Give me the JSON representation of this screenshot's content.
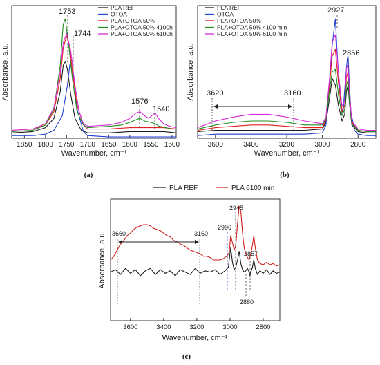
{
  "panels": [
    {
      "id": "a",
      "caption": "(a)",
      "xlabel": "Wavenumber, cm⁻¹",
      "ylabel": "Absorbance, a.u.",
      "legend": [
        {
          "name": "PLA  REF",
          "color": "#1a1a1a"
        },
        {
          "name": "OTOA",
          "color": "#1f3fd0"
        },
        {
          "name": "PLA+OTOA 50%",
          "color": "#e02020"
        },
        {
          "name": "PLA+OTOA 50% 4100h",
          "color": "#1f8f1f"
        },
        {
          "name": "PLA+OTOA 50% 6100h",
          "color": "#d62ad6"
        }
      ],
      "peak_labels": [
        "1753",
        "1744",
        "1576",
        "1540"
      ]
    },
    {
      "id": "b",
      "caption": "(b)",
      "xlabel": "Wavenumber, cm⁻¹",
      "ylabel": "Absorbance, a.u.",
      "legend": [
        {
          "name": "PLA  REF",
          "color": "#1a1a1a"
        },
        {
          "name": "OTOA",
          "color": "#1f3fd0"
        },
        {
          "name": "PLA+OTOA 50%",
          "color": "#e02020"
        },
        {
          "name": "PLA+OTOA 50% 4100 min",
          "color": "#1f8f1f"
        },
        {
          "name": "PLA+OTOA 50% 6100 min",
          "color": "#d62ad6"
        }
      ],
      "peak_labels": [
        "2927",
        "2856",
        "3620",
        "3160"
      ]
    },
    {
      "id": "c",
      "caption": "(c)",
      "xlabel": "Wavenumber, cm⁻¹",
      "ylabel": "Absorbance, a.u.",
      "legend": [
        {
          "name": "PLA REF",
          "color": "#1a1a1a"
        },
        {
          "name": "PLA 6100 min",
          "color": "#d02020"
        }
      ],
      "peak_labels": [
        "2945",
        "2996",
        "2857",
        "2880",
        "3660",
        "3160"
      ]
    }
  ],
  "chart_data": [
    {
      "type": "line",
      "panel": "a",
      "xlim": [
        1880,
        1490
      ],
      "ylim": [
        0,
        1.0
      ],
      "x_ticks": [
        1850,
        1800,
        1750,
        1700,
        1650,
        1600,
        1550,
        1500
      ],
      "xlabel": "Wavenumber, cm⁻¹",
      "ylabel": "Absorbance, a.u.",
      "y_tick_labels": false,
      "series": [
        {
          "name": "PLA  REF",
          "color": "#1a1a1a",
          "x": [
            1880,
            1830,
            1800,
            1780,
            1765,
            1758,
            1753,
            1748,
            1740,
            1730,
            1715,
            1700,
            1650,
            1600,
            1580,
            1560,
            1540,
            1520,
            1490
          ],
          "y": [
            0.04,
            0.05,
            0.08,
            0.15,
            0.35,
            0.55,
            0.58,
            0.52,
            0.33,
            0.15,
            0.06,
            0.04,
            0.04,
            0.05,
            0.05,
            0.05,
            0.05,
            0.05,
            0.04
          ]
        },
        {
          "name": "OTOA",
          "color": "#1f3fd0",
          "x": [
            1880,
            1830,
            1800,
            1780,
            1760,
            1748,
            1742,
            1735,
            1725,
            1710,
            1700,
            1650,
            1600,
            1580,
            1560,
            1540,
            1520,
            1490
          ],
          "y": [
            0.02,
            0.02,
            0.03,
            0.06,
            0.17,
            0.4,
            0.56,
            0.5,
            0.22,
            0.05,
            0.02,
            0.01,
            0.01,
            0.01,
            0.01,
            0.01,
            0.01,
            0.01
          ]
        },
        {
          "name": "PLA+OTOA 50%",
          "color": "#e02020",
          "x": [
            1880,
            1830,
            1800,
            1780,
            1765,
            1758,
            1750,
            1743,
            1735,
            1725,
            1710,
            1700,
            1650,
            1600,
            1580,
            1560,
            1540,
            1520,
            1490
          ],
          "y": [
            0.06,
            0.07,
            0.1,
            0.2,
            0.45,
            0.68,
            0.77,
            0.7,
            0.47,
            0.25,
            0.1,
            0.07,
            0.07,
            0.08,
            0.08,
            0.08,
            0.08,
            0.08,
            0.07
          ]
        },
        {
          "name": "PLA+OTOA 50% 4100h",
          "color": "#1f8f1f",
          "x": [
            1880,
            1830,
            1800,
            1780,
            1765,
            1758,
            1753,
            1745,
            1735,
            1725,
            1710,
            1700,
            1650,
            1620,
            1600,
            1585,
            1576,
            1565,
            1550,
            1540,
            1530,
            1515,
            1500,
            1490
          ],
          "y": [
            0.05,
            0.06,
            0.1,
            0.22,
            0.55,
            0.86,
            0.9,
            0.7,
            0.42,
            0.2,
            0.1,
            0.08,
            0.09,
            0.1,
            0.12,
            0.14,
            0.15,
            0.13,
            0.12,
            0.11,
            0.09,
            0.08,
            0.07,
            0.07
          ]
        },
        {
          "name": "PLA+OTOA 50% 6100h",
          "color": "#d62ad6",
          "x": [
            1880,
            1830,
            1800,
            1780,
            1765,
            1758,
            1750,
            1740,
            1730,
            1720,
            1710,
            1700,
            1650,
            1620,
            1600,
            1585,
            1576,
            1565,
            1555,
            1548,
            1540,
            1532,
            1520,
            1505,
            1490
          ],
          "y": [
            0.06,
            0.07,
            0.11,
            0.23,
            0.5,
            0.72,
            0.79,
            0.66,
            0.4,
            0.2,
            0.11,
            0.09,
            0.1,
            0.12,
            0.15,
            0.19,
            0.2,
            0.17,
            0.15,
            0.17,
            0.19,
            0.15,
            0.11,
            0.09,
            0.08
          ]
        }
      ]
    },
    {
      "type": "line",
      "panel": "b",
      "xlim": [
        3700,
        2700
      ],
      "ylim": [
        0,
        1.0
      ],
      "x_ticks": [
        3600,
        3400,
        3200,
        3000,
        2800
      ],
      "xlabel": "Wavenumber, cm⁻¹",
      "ylabel": "Absorbance, a.u.",
      "y_tick_labels": false,
      "annotations": [
        {
          "type": "range-arrow",
          "from": 3620,
          "to": 3160,
          "label_left": "3620",
          "label_right": "3160"
        }
      ],
      "series": [
        {
          "name": "PLA  REF",
          "color": "#1a1a1a",
          "x": [
            3700,
            3600,
            3500,
            3400,
            3300,
            3200,
            3100,
            3000,
            2980,
            2960,
            2945,
            2927,
            2910,
            2890,
            2875,
            2865,
            2856,
            2848,
            2835,
            2800,
            2750,
            2700
          ],
          "y": [
            0.05,
            0.06,
            0.06,
            0.06,
            0.06,
            0.06,
            0.06,
            0.07,
            0.12,
            0.3,
            0.45,
            0.4,
            0.25,
            0.13,
            0.18,
            0.35,
            0.4,
            0.26,
            0.1,
            0.05,
            0.04,
            0.04
          ]
        },
        {
          "name": "OTOA",
          "color": "#1f3fd0",
          "x": [
            3700,
            3600,
            3500,
            3400,
            3300,
            3200,
            3100,
            3000,
            2980,
            2960,
            2945,
            2927,
            2915,
            2900,
            2885,
            2870,
            2860,
            2856,
            2850,
            2840,
            2820,
            2800,
            2750,
            2700
          ],
          "y": [
            0.02,
            0.03,
            0.03,
            0.03,
            0.03,
            0.03,
            0.03,
            0.04,
            0.1,
            0.4,
            0.7,
            0.9,
            0.6,
            0.3,
            0.18,
            0.45,
            0.6,
            0.62,
            0.45,
            0.2,
            0.06,
            0.03,
            0.02,
            0.02
          ]
        },
        {
          "name": "PLA+OTOA 50%",
          "color": "#e02020",
          "x": [
            3700,
            3600,
            3500,
            3400,
            3300,
            3200,
            3100,
            3000,
            2980,
            2960,
            2945,
            2927,
            2910,
            2890,
            2875,
            2865,
            2856,
            2848,
            2835,
            2800,
            2750,
            2700
          ],
          "y": [
            0.06,
            0.08,
            0.09,
            0.1,
            0.1,
            0.09,
            0.08,
            0.08,
            0.14,
            0.4,
            0.62,
            0.67,
            0.42,
            0.2,
            0.25,
            0.46,
            0.5,
            0.32,
            0.12,
            0.06,
            0.05,
            0.05
          ]
        },
        {
          "name": "PLA+OTOA 50% 4100 min",
          "color": "#1f8f1f",
          "x": [
            3700,
            3600,
            3500,
            3400,
            3300,
            3200,
            3100,
            3000,
            2980,
            2960,
            2945,
            2927,
            2910,
            2890,
            2875,
            2865,
            2856,
            2848,
            2835,
            2800,
            2750,
            2700
          ],
          "y": [
            0.07,
            0.1,
            0.12,
            0.13,
            0.13,
            0.12,
            0.1,
            0.1,
            0.15,
            0.36,
            0.5,
            0.52,
            0.33,
            0.17,
            0.22,
            0.4,
            0.44,
            0.28,
            0.11,
            0.06,
            0.05,
            0.05
          ]
        },
        {
          "name": "PLA+OTOA 50% 6100 min",
          "color": "#d62ad6",
          "x": [
            3700,
            3600,
            3500,
            3400,
            3300,
            3200,
            3100,
            3000,
            2980,
            2960,
            2945,
            2927,
            2910,
            2890,
            2875,
            2865,
            2856,
            2848,
            2835,
            2800,
            2750,
            2700
          ],
          "y": [
            0.08,
            0.13,
            0.16,
            0.18,
            0.18,
            0.16,
            0.13,
            0.11,
            0.16,
            0.45,
            0.72,
            0.78,
            0.5,
            0.24,
            0.28,
            0.52,
            0.56,
            0.35,
            0.13,
            0.07,
            0.06,
            0.06
          ]
        }
      ]
    },
    {
      "type": "line",
      "panel": "c",
      "xlim": [
        3720,
        2700
      ],
      "ylim": [
        0,
        1.0
      ],
      "x_ticks": [
        3600,
        3400,
        3200,
        3000,
        2800
      ],
      "xlabel": "Wavenumber, cm⁻¹",
      "ylabel": "Absorbance, a.u.",
      "y_tick_labels": false,
      "annotations": [
        {
          "type": "range-arrow",
          "from": 3660,
          "to": 3160,
          "label_left": "3660",
          "label_right": "3160"
        }
      ],
      "series": [
        {
          "name": "PLA REF",
          "color": "#1a1a1a",
          "x": [
            3720,
            3690,
            3660,
            3630,
            3600,
            3570,
            3540,
            3510,
            3480,
            3450,
            3420,
            3390,
            3360,
            3330,
            3300,
            3270,
            3240,
            3210,
            3180,
            3150,
            3120,
            3090,
            3060,
            3030,
            3010,
            2996,
            2985,
            2975,
            2965,
            2955,
            2945,
            2935,
            2925,
            2915,
            2905,
            2895,
            2885,
            2880,
            2875,
            2865,
            2857,
            2848,
            2835,
            2820,
            2800,
            2780,
            2760,
            2740,
            2720,
            2700
          ],
          "y": [
            0.4,
            0.42,
            0.38,
            0.43,
            0.39,
            0.42,
            0.37,
            0.41,
            0.43,
            0.38,
            0.42,
            0.39,
            0.41,
            0.37,
            0.42,
            0.4,
            0.38,
            0.43,
            0.39,
            0.41,
            0.4,
            0.42,
            0.38,
            0.41,
            0.44,
            0.6,
            0.48,
            0.42,
            0.44,
            0.5,
            0.57,
            0.47,
            0.42,
            0.4,
            0.41,
            0.43,
            0.4,
            0.37,
            0.4,
            0.44,
            0.5,
            0.43,
            0.38,
            0.41,
            0.39,
            0.42,
            0.38,
            0.41,
            0.39,
            0.4
          ]
        },
        {
          "name": "PLA 6100 min",
          "color": "#d02020",
          "x": [
            3720,
            3700,
            3680,
            3660,
            3640,
            3620,
            3600,
            3580,
            3560,
            3540,
            3520,
            3500,
            3480,
            3460,
            3440,
            3420,
            3400,
            3380,
            3360,
            3340,
            3320,
            3300,
            3280,
            3260,
            3240,
            3220,
            3200,
            3180,
            3160,
            3140,
            3120,
            3100,
            3080,
            3060,
            3040,
            3020,
            3005,
            2996,
            2985,
            2975,
            2965,
            2955,
            2945,
            2935,
            2925,
            2915,
            2905,
            2895,
            2885,
            2875,
            2865,
            2857,
            2848,
            2835,
            2820,
            2800,
            2780,
            2760,
            2740,
            2720,
            2700
          ],
          "y": [
            0.5,
            0.53,
            0.58,
            0.63,
            0.66,
            0.7,
            0.72,
            0.75,
            0.77,
            0.78,
            0.79,
            0.79,
            0.78,
            0.76,
            0.75,
            0.74,
            0.72,
            0.7,
            0.69,
            0.66,
            0.65,
            0.63,
            0.62,
            0.6,
            0.58,
            0.57,
            0.56,
            0.55,
            0.53,
            0.53,
            0.52,
            0.5,
            0.5,
            0.5,
            0.51,
            0.53,
            0.56,
            0.7,
            0.64,
            0.58,
            0.62,
            0.8,
            0.94,
            0.9,
            0.72,
            0.6,
            0.55,
            0.52,
            0.5,
            0.55,
            0.62,
            0.7,
            0.6,
            0.5,
            0.47,
            0.46,
            0.48,
            0.46,
            0.47,
            0.45,
            0.46
          ]
        }
      ]
    }
  ]
}
